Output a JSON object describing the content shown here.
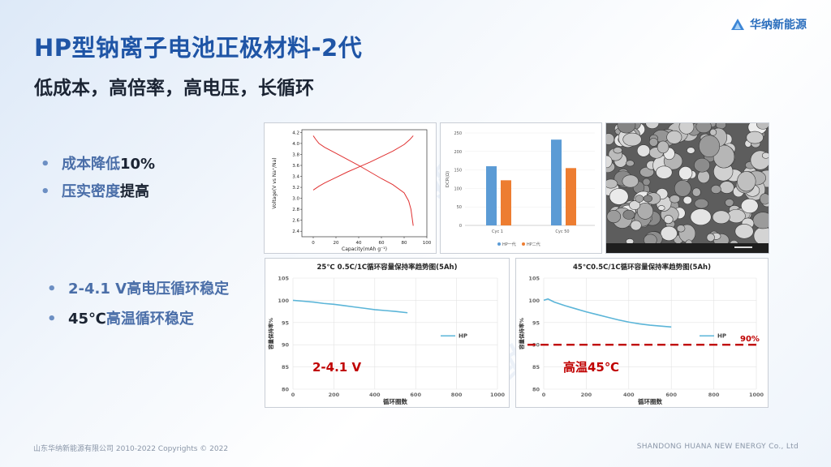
{
  "header": {
    "title": "HP型钠离子电池正极材料-2代",
    "subtitle": "低成本，高倍率，高电压，长循环",
    "logo_text": "华纳新能源"
  },
  "bullets_top": [
    {
      "pre": "成本降低",
      "em": "10%"
    },
    {
      "pre": "压实密度",
      "em": "提高"
    }
  ],
  "bullets_bottom": [
    {
      "pre": "2-4.1 V高电压循环稳定",
      "em": ""
    },
    {
      "pre": "45℃",
      "em": "高温循环稳定"
    }
  ],
  "watermark": "华纳新能源",
  "footer": {
    "left": "山东华纳新能源有限公司 2010-2022 Copyrights © 2022",
    "right": "SHANDONG HUANA NEW ENERGY Co., Ltd"
  },
  "colors": {
    "title": "#1f55a6",
    "curve_red": "#e03131",
    "bar_blue": "#5b9bd5",
    "bar_orange": "#ed7d31",
    "cycle_line": "#5bb5d8",
    "dashed_red": "#c00000"
  },
  "chart_data": [
    {
      "type": "line",
      "xlabel": "Capacity(mAh g⁻¹)",
      "ylabel": "Voltage(V vs Na⁺/Na)",
      "xlim": [
        -10,
        100
      ],
      "ylim": [
        2.3,
        4.25
      ],
      "x_ticks": [
        0,
        20,
        40,
        60,
        80,
        100
      ],
      "y_ticks": [
        2.4,
        2.6,
        2.8,
        3.0,
        3.2,
        3.4,
        3.6,
        3.8,
        4.0,
        4.2
      ],
      "series": [
        {
          "x": [
            0,
            5,
            10,
            20,
            30,
            40,
            50,
            60,
            70,
            80,
            85,
            88
          ],
          "y": [
            3.15,
            3.22,
            3.28,
            3.38,
            3.48,
            3.57,
            3.66,
            3.76,
            3.86,
            3.98,
            4.07,
            4.14
          ]
        },
        {
          "x": [
            0,
            2,
            5,
            10,
            20,
            30,
            40,
            50,
            60,
            70,
            80,
            84,
            86,
            87,
            88
          ],
          "y": [
            4.14,
            4.08,
            4.0,
            3.93,
            3.82,
            3.71,
            3.6,
            3.48,
            3.36,
            3.25,
            3.1,
            2.95,
            2.8,
            2.65,
            2.5
          ]
        }
      ]
    },
    {
      "type": "bar",
      "ylabel": "DCR(Ω)",
      "ylim": [
        0,
        250
      ],
      "y_ticks": [
        0,
        50,
        100,
        150,
        200,
        250
      ],
      "categories": [
        "Cyc 1",
        "Cyc 50"
      ],
      "series": [
        {
          "name": "HP一代",
          "values": [
            160,
            232
          ]
        },
        {
          "name": "HP二代",
          "values": [
            122,
            155
          ]
        }
      ],
      "legend": "bottom"
    },
    {
      "type": "line",
      "title": "25℃ 0.5C/1C循环容量保持率趋势图(5Ah)",
      "xlabel": "循环圈数",
      "ylabel": "容量保持率%",
      "xlim": [
        0,
        1000
      ],
      "ylim": [
        80,
        105
      ],
      "x_ticks": [
        0,
        200,
        400,
        600,
        800,
        1000
      ],
      "y_ticks": [
        80,
        85,
        90,
        95,
        100,
        105
      ],
      "series": [
        {
          "name": "HP",
          "x": [
            0,
            50,
            100,
            150,
            200,
            250,
            300,
            350,
            400,
            450,
            500,
            560
          ],
          "y": [
            100,
            99.8,
            99.6,
            99.3,
            99.1,
            98.8,
            98.5,
            98.2,
            97.9,
            97.7,
            97.5,
            97.2
          ]
        }
      ],
      "annotation": "2-4.1 V",
      "legend": "right"
    },
    {
      "type": "line",
      "title": "45℃0.5C/1C循环容量保持率趋势图(5Ah)",
      "xlabel": "循环圈数",
      "ylabel": "容量保持率%",
      "xlim": [
        0,
        1000
      ],
      "ylim": [
        80,
        105
      ],
      "x_ticks": [
        0,
        200,
        400,
        600,
        800,
        1000
      ],
      "y_ticks": [
        80,
        85,
        90,
        95,
        100,
        105
      ],
      "series": [
        {
          "name": "HP",
          "x": [
            0,
            20,
            50,
            100,
            150,
            200,
            250,
            300,
            350,
            400,
            450,
            500,
            550,
            600
          ],
          "y": [
            100,
            100.3,
            99.6,
            98.8,
            98.1,
            97.4,
            96.8,
            96.2,
            95.6,
            95.1,
            94.7,
            94.4,
            94.2,
            94.0
          ]
        }
      ],
      "reference_line": {
        "y": 90,
        "label": "90%"
      },
      "annotation": "高温45℃",
      "legend": "right"
    }
  ]
}
